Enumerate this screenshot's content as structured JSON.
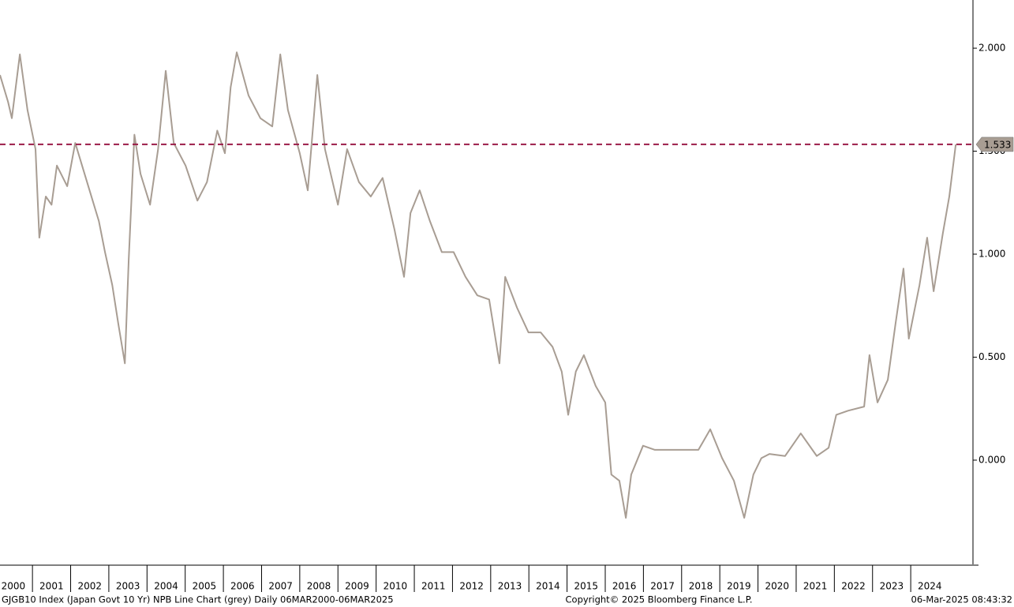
{
  "chart_data": {
    "type": "line",
    "footer_left": "GJGB10 Index (Japan Govt 10 Yr) NPB Line Chart (grey)  Daily 06MAR2000-06MAR2025",
    "footer_center": "Copyright© 2025 Bloomberg Finance L.P.",
    "footer_right": "06-Mar-2025 08:43:32",
    "x": [
      2000.15,
      2000.36,
      2000.46,
      2000.67,
      2000.87,
      2001.08,
      2001.18,
      2001.35,
      2001.5,
      2001.64,
      2001.91,
      2002.12,
      2002.43,
      2002.74,
      2002.9,
      2003.09,
      2003.25,
      2003.42,
      2003.52,
      2003.67,
      2003.83,
      2004.08,
      2004.29,
      2004.49,
      2004.7,
      2005.01,
      2005.32,
      2005.57,
      2005.84,
      2006.04,
      2006.19,
      2006.35,
      2006.66,
      2006.97,
      2007.28,
      2007.49,
      2007.69,
      2008.0,
      2008.21,
      2008.46,
      2008.66,
      2009.0,
      2009.24,
      2009.55,
      2009.86,
      2010.17,
      2010.48,
      2010.73,
      2010.9,
      2011.14,
      2011.41,
      2011.72,
      2012.03,
      2012.34,
      2012.65,
      2012.96,
      2013.23,
      2013.38,
      2013.69,
      2013.99,
      2014.31,
      2014.62,
      2014.86,
      2015.03,
      2015.23,
      2015.44,
      2015.75,
      2016.0,
      2016.16,
      2016.37,
      2016.54,
      2016.68,
      2016.99,
      2017.3,
      2017.71,
      2018.13,
      2018.44,
      2018.75,
      2019.06,
      2019.37,
      2019.64,
      2019.88,
      2020.09,
      2020.3,
      2020.71,
      2021.12,
      2021.54,
      2021.85,
      2022.05,
      2022.36,
      2022.78,
      2022.92,
      2023.13,
      2023.4,
      2023.6,
      2023.81,
      2023.95,
      2024.23,
      2024.43,
      2024.6,
      2024.84,
      2025.01,
      2025.18
    ],
    "series": [
      {
        "name": "GJGB10 Index",
        "color": "#a89d93",
        "values": [
          1.87,
          1.74,
          1.66,
          1.97,
          1.7,
          1.51,
          1.08,
          1.28,
          1.24,
          1.43,
          1.33,
          1.54,
          1.35,
          1.16,
          1.01,
          0.85,
          0.66,
          0.47,
          0.97,
          1.58,
          1.39,
          1.24,
          1.51,
          1.89,
          1.54,
          1.43,
          1.26,
          1.35,
          1.6,
          1.49,
          1.81,
          1.98,
          1.77,
          1.66,
          1.62,
          1.97,
          1.7,
          1.49,
          1.31,
          1.87,
          1.51,
          1.24,
          1.51,
          1.35,
          1.28,
          1.37,
          1.12,
          0.89,
          1.2,
          1.31,
          1.16,
          1.01,
          1.01,
          0.89,
          0.8,
          0.78,
          0.47,
          0.89,
          0.74,
          0.62,
          0.62,
          0.55,
          0.43,
          0.22,
          0.43,
          0.51,
          0.36,
          0.28,
          -0.07,
          -0.1,
          -0.28,
          -0.07,
          0.07,
          0.05,
          0.05,
          0.05,
          0.05,
          0.15,
          0.01,
          -0.1,
          -0.28,
          -0.07,
          0.01,
          0.03,
          0.02,
          0.13,
          0.02,
          0.06,
          0.22,
          0.24,
          0.26,
          0.51,
          0.28,
          0.39,
          0.66,
          0.93,
          0.59,
          0.85,
          1.08,
          0.82,
          1.1,
          1.28,
          1.533
        ]
      }
    ],
    "last_value": 1.533,
    "reference_color": "#9b1b47",
    "xlim": [
      2000.15,
      2025.63
    ],
    "xticks": [
      2000,
      2001,
      2002,
      2003,
      2004,
      2005,
      2006,
      2007,
      2008,
      2009,
      2010,
      2011,
      2012,
      2013,
      2014,
      2015,
      2016,
      2017,
      2018,
      2019,
      2020,
      2021,
      2022,
      2023,
      2024
    ],
    "ylim": [
      -0.506,
      2.234
    ],
    "yticks": [
      {
        "value": 0,
        "label": "0.000"
      },
      {
        "value": 0.5,
        "label": "0.500"
      },
      {
        "value": 1,
        "label": "1.000"
      },
      {
        "value": 1.5,
        "label": "1.500"
      },
      {
        "value": 2,
        "label": "2.000"
      }
    ]
  }
}
